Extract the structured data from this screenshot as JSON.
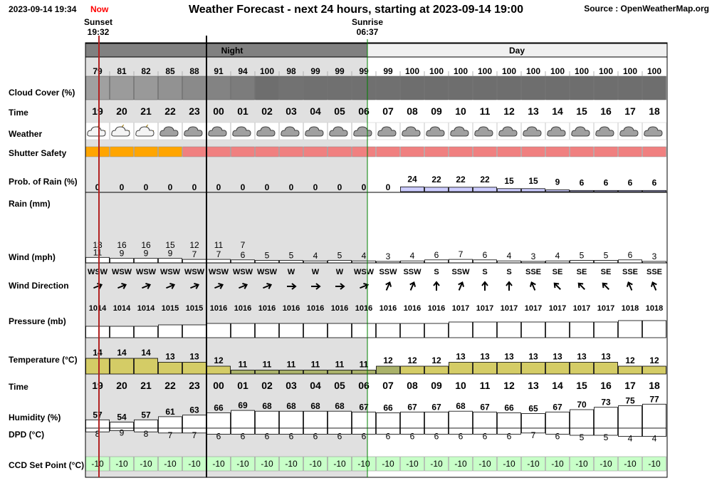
{
  "header": {
    "timestamp": "2023-09-14 19:34",
    "now_label": "Now",
    "title": "Weather Forecast - next 24 hours, starting at 2023-09-14 19:00",
    "source": "Source : OpenWeatherMap.org",
    "sunset_label": "Sunset",
    "sunset_time": "19:32",
    "sunrise_label": "Sunrise",
    "sunrise_time": "06:37",
    "night_label": "Night",
    "day_label": "Day"
  },
  "row_labels": {
    "cloud": "Cloud Cover (%)",
    "time": "Time",
    "weather": "Weather",
    "shutter": "Shutter Safety",
    "rain_prob": "Prob. of Rain (%)",
    "rain": "Rain (mm)",
    "wind": "Wind (mph)",
    "wind_dir": "Wind Direction",
    "pressure": "Pressure (mb)",
    "temp": "Temperature (°C)",
    "time2": "Time",
    "humidity": "Humidity (%)",
    "dpd": "DPD (°C)",
    "ccd": "CCD Set Point (°C)"
  },
  "colors": {
    "night_bg": "#e0e0e0",
    "night_header": "#808080",
    "day_header": "#f0f0f0",
    "shutter_safe_orange": "#ffa500",
    "shutter_unsafe_red": "#f08080",
    "rain_prob_fill": "#ccccff",
    "temp_fill_warm": "#d4cc66",
    "temp_fill_cool": "#aab26a",
    "ccd_fill": "#c8ffc8",
    "now_line": "#b22222",
    "sunrise_line": "#008000"
  },
  "chart_data": {
    "type": "table",
    "hours": [
      "19",
      "20",
      "21",
      "22",
      "23",
      "00",
      "01",
      "02",
      "03",
      "04",
      "05",
      "06",
      "07",
      "08",
      "09",
      "10",
      "11",
      "12",
      "13",
      "14",
      "15",
      "16",
      "17",
      "18"
    ],
    "cloud_cover": [
      79,
      81,
      82,
      85,
      88,
      91,
      94,
      100,
      98,
      99,
      99,
      99,
      99,
      100,
      100,
      100,
      100,
      100,
      100,
      100,
      100,
      100,
      100,
      100
    ],
    "weather_icons": [
      "partly-cloudy-night-icon",
      "partly-cloudy-night-icon",
      "partly-cloudy-night-icon",
      "cloud-icon",
      "cloud-icon",
      "cloud-icon",
      "cloud-icon",
      "cloud-icon",
      "cloud-icon",
      "cloud-icon",
      "cloud-icon",
      "cloud-icon",
      "cloud-icon",
      "cloud-icon",
      "cloud-icon",
      "cloud-icon",
      "cloud-icon",
      "cloud-icon",
      "cloud-icon",
      "cloud-icon",
      "cloud-icon",
      "cloud-icon",
      "cloud-icon",
      "cloud-icon"
    ],
    "shutter_safety": [
      "orange",
      "orange",
      "orange",
      "orange",
      "red",
      "red",
      "red",
      "red",
      "red",
      "red",
      "red",
      "red",
      "red",
      "red",
      "red",
      "red",
      "red",
      "red",
      "red",
      "red",
      "red",
      "red",
      "red",
      "red"
    ],
    "rain_probability": [
      0,
      0,
      0,
      0,
      0,
      0,
      0,
      0,
      0,
      0,
      0,
      0,
      0,
      24,
      22,
      22,
      22,
      15,
      15,
      9,
      6,
      6,
      6,
      6
    ],
    "wind_gust": [
      "13",
      "16",
      "16",
      "15",
      "12",
      "11",
      "7",
      "",
      "",
      "",
      "",
      "",
      "",
      "",
      "",
      "",
      "",
      "",
      "",
      "",
      "",
      "",
      "",
      ""
    ],
    "wind_speed": [
      11,
      9,
      9,
      9,
      7,
      7,
      6,
      5,
      5,
      4,
      5,
      4,
      3,
      4,
      6,
      7,
      6,
      4,
      3,
      4,
      5,
      5,
      6,
      3
    ],
    "wind_direction": [
      "WSW",
      "WSW",
      "WSW",
      "WSW",
      "WSW",
      "WSW",
      "WSW",
      "WSW",
      "W",
      "W",
      "W",
      "WSW",
      "SSW",
      "SSW",
      "S",
      "SSW",
      "S",
      "S",
      "SSE",
      "SE",
      "SE",
      "SE",
      "SSE",
      "SSE"
    ],
    "wind_arrow_deg": [
      68,
      68,
      68,
      68,
      68,
      68,
      68,
      68,
      90,
      90,
      90,
      68,
      23,
      23,
      0,
      23,
      0,
      0,
      -23,
      -45,
      -45,
      -45,
      -23,
      -23
    ],
    "pressure": [
      1014,
      1014,
      1014,
      1015,
      1015,
      1016,
      1016,
      1016,
      1016,
      1016,
      1016,
      1016,
      1016,
      1016,
      1016,
      1017,
      1017,
      1017,
      1017,
      1017,
      1017,
      1017,
      1018,
      1018
    ],
    "temperature": [
      14,
      14,
      14,
      13,
      13,
      12,
      11,
      11,
      11,
      11,
      11,
      11,
      12,
      12,
      12,
      13,
      13,
      13,
      13,
      13,
      13,
      13,
      12,
      12
    ],
    "humidity": [
      57,
      54,
      57,
      61,
      63,
      66,
      69,
      68,
      68,
      68,
      68,
      67,
      66,
      67,
      67,
      68,
      67,
      66,
      65,
      67,
      70,
      73,
      75,
      77
    ],
    "dpd": [
      8,
      9,
      8,
      7,
      7,
      6,
      6,
      6,
      6,
      6,
      6,
      6,
      6,
      6,
      6,
      6,
      6,
      6,
      7,
      6,
      5,
      5,
      4,
      4
    ],
    "ccd_set_point": [
      "-10",
      "-10",
      "-10",
      "-10",
      "-10",
      "-10",
      "-10",
      "-10",
      "-10",
      "-10",
      "-10",
      "-10",
      "-10",
      "-10",
      "-10",
      "-10",
      "-10",
      "-10",
      "-10",
      "-10",
      "-10",
      "-10",
      "-10",
      "-10"
    ]
  }
}
